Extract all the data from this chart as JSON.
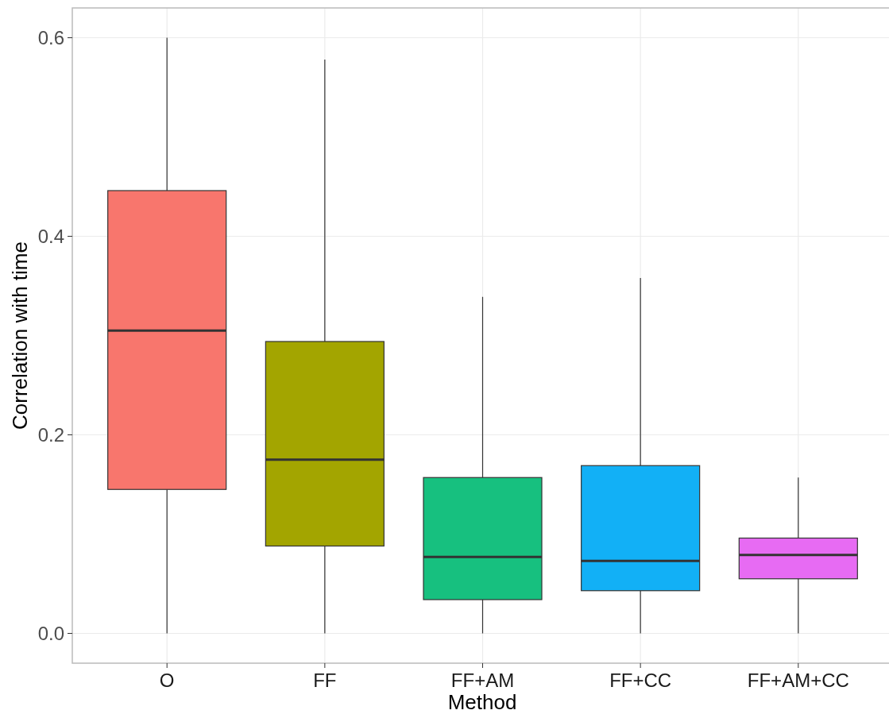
{
  "chart_data": {
    "type": "box",
    "xlabel": "Method",
    "ylabel": "Correlation with time",
    "categories": [
      "O",
      "FF",
      "FF+AM",
      "FF+CC",
      "FF+AM+CC"
    ],
    "colors": [
      "#f8766d",
      "#a3a500",
      "#17c07f",
      "#12b0f6",
      "#e76bf3"
    ],
    "boxes": [
      {
        "low": 0,
        "q1": 0.145,
        "median": 0.305,
        "q3": 0.446,
        "high": 0.6
      },
      {
        "low": 0,
        "q1": 0.088,
        "median": 0.175,
        "q3": 0.294,
        "high": 0.578
      },
      {
        "low": 0,
        "q1": 0.034,
        "median": 0.077,
        "q3": 0.157,
        "high": 0.339
      },
      {
        "low": 0,
        "q1": 0.043,
        "median": 0.073,
        "q3": 0.169,
        "high": 0.358
      },
      {
        "low": 0,
        "q1": 0.055,
        "median": 0.079,
        "q3": 0.096,
        "high": 0.157
      }
    ],
    "ylim": [
      -0.03,
      0.63
    ],
    "yticks": [
      {
        "value": 0,
        "label": "0.0"
      },
      {
        "value": 0.2,
        "label": "0.2"
      },
      {
        "value": 0.4,
        "label": "0.4"
      },
      {
        "value": 0.6,
        "label": "0.6"
      }
    ],
    "grid": true
  }
}
